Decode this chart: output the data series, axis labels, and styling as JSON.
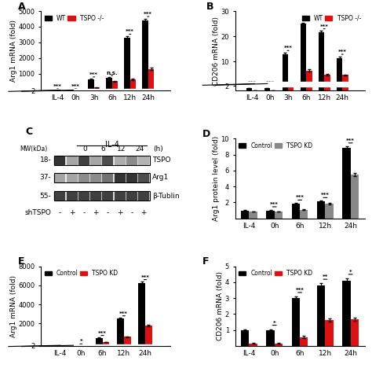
{
  "panel_A": {
    "title": "A",
    "ylabel": "Arg1 mRNA (fold)",
    "xlabel_labels": [
      "IL-4",
      "0h",
      "3h",
      "6h",
      "12h",
      "24h"
    ],
    "black_values": [
      0.5,
      0.5,
      600,
      700,
      3300,
      4400
    ],
    "red_values": [
      0.08,
      0.08,
      100,
      500,
      620,
      1300
    ],
    "black_errors": [
      0.06,
      0.05,
      55,
      50,
      90,
      120
    ],
    "red_errors": [
      0.01,
      0.01,
      15,
      35,
      45,
      70
    ],
    "significance": [
      "***",
      "***",
      "***",
      "n.s.",
      "***",
      "***"
    ],
    "ylim_low": [
      0,
      2.5
    ],
    "ylim_high": [
      200,
      5000
    ],
    "yticks_low": [
      2
    ],
    "yticks_high": [
      1000,
      2000,
      3000,
      4000,
      5000
    ],
    "legend_labels": [
      "WT",
      "TSPO -/-"
    ]
  },
  "panel_B": {
    "title": "B",
    "ylabel": "CD206 mRNA (fold)",
    "xlabel_labels": [
      "IL-4",
      "0h",
      "3h",
      "6h",
      "12h",
      "24h"
    ],
    "black_values": [
      1.0,
      1.0,
      13.0,
      25.0,
      21.5,
      11.5
    ],
    "red_values": [
      0.15,
      0.15,
      1.8,
      6.5,
      4.8,
      4.7
    ],
    "black_errors": [
      0.08,
      0.06,
      0.6,
      0.5,
      0.7,
      0.6
    ],
    "red_errors": [
      0.02,
      0.02,
      0.15,
      0.4,
      0.3,
      0.3
    ],
    "significance": [
      "***",
      "***",
      "***",
      "***",
      "***",
      "***"
    ],
    "ylim_low": [
      0,
      2.5
    ],
    "ylim_high": [
      3,
      30
    ],
    "yticks_low": [
      2
    ],
    "yticks_high": [
      10,
      20,
      30
    ],
    "legend_labels": [
      "WT",
      "TSPO -/-"
    ]
  },
  "panel_D": {
    "title": "D",
    "ylabel": "Arg1 protein level (fold)",
    "xlabel_labels": [
      "IL-4",
      "0h",
      "6h",
      "12h",
      "24h"
    ],
    "black_values": [
      1.0,
      1.0,
      1.8,
      2.1,
      8.8
    ],
    "gray_values": [
      0.85,
      0.85,
      1.1,
      1.85,
      5.5
    ],
    "black_errors": [
      0.05,
      0.05,
      0.1,
      0.1,
      0.25
    ],
    "gray_errors": [
      0.04,
      0.04,
      0.08,
      0.1,
      0.2
    ],
    "significance": [
      "***",
      "***",
      "***",
      "***"
    ],
    "ylim": [
      0,
      10
    ],
    "yticks": [
      2,
      4,
      6,
      8,
      10
    ],
    "legend_labels": [
      "Control",
      "TSPO KD"
    ]
  },
  "panel_E": {
    "title": "E",
    "ylabel": "Arg1 mRNA (fold)",
    "xlabel_labels": [
      "IL-4",
      "0h",
      "6h",
      "12h",
      "24h"
    ],
    "black_values": [
      1.0,
      1.0,
      500,
      2500,
      6200
    ],
    "red_values": [
      0.4,
      0.4,
      80,
      600,
      1800
    ],
    "black_errors": [
      0.08,
      0.05,
      35,
      90,
      180
    ],
    "red_errors": [
      0.04,
      0.04,
      10,
      45,
      90
    ],
    "significance": [
      "*",
      "***",
      "***",
      "***"
    ],
    "ylim_low": [
      0,
      2.5
    ],
    "ylim_high": [
      50,
      8000
    ],
    "yticks_low": [
      2
    ],
    "yticks_high": [
      2000,
      4000,
      6000,
      8000
    ],
    "legend_labels": [
      "Control",
      "TSPO KD"
    ]
  },
  "panel_F": {
    "title": "F",
    "ylabel": "CD206 mRNA (fold)",
    "xlabel_labels": [
      "IL-4",
      "0h",
      "6h",
      "12h",
      "24h"
    ],
    "black_values": [
      1.0,
      1.0,
      3.0,
      3.8,
      4.1
    ],
    "red_values": [
      0.15,
      0.15,
      0.55,
      1.6,
      1.65
    ],
    "black_errors": [
      0.05,
      0.05,
      0.1,
      0.13,
      0.14
    ],
    "red_errors": [
      0.02,
      0.02,
      0.08,
      0.1,
      0.1
    ],
    "significance": [
      "*",
      "***",
      "**",
      "*"
    ],
    "ylim": [
      0,
      5
    ],
    "yticks": [
      1,
      2,
      3,
      4,
      5
    ],
    "legend_labels": [
      "Control",
      "TSPO KD"
    ]
  },
  "panel_C": {
    "timepoints": [
      "0",
      "6",
      "12",
      "24"
    ],
    "bands": [
      "TSPO",
      "Arg1",
      "β-Tublin"
    ],
    "mw_labels": [
      "18",
      "37",
      "55"
    ]
  },
  "colors": {
    "black": "#000000",
    "red": "#dd1111",
    "gray": "#888888"
  }
}
